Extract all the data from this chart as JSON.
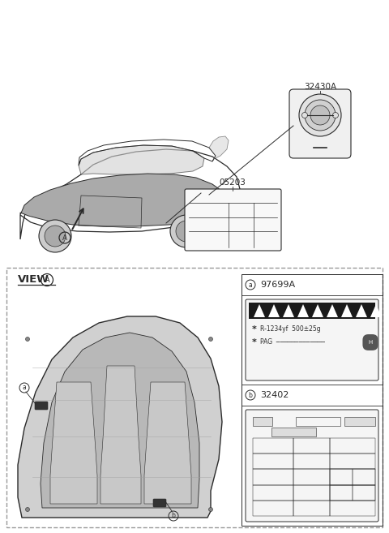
{
  "bg_color": "#ffffff",
  "line_color": "#2a2a2a",
  "gray_fill": "#c8c8c8",
  "light_gray": "#e8e8e8",
  "dark_fill": "#333333",
  "dash_color": "#999999",
  "part_32430A": "32430A",
  "part_05203": "05203",
  "part_97699A": "97699A",
  "part_32402": "32402",
  "view_text": "VIEW",
  "circle_A": "A",
  "label_a": "a",
  "label_b": "b",
  "ac_text1": "R-1234yf  500±25g",
  "ac_text2": "PAG"
}
